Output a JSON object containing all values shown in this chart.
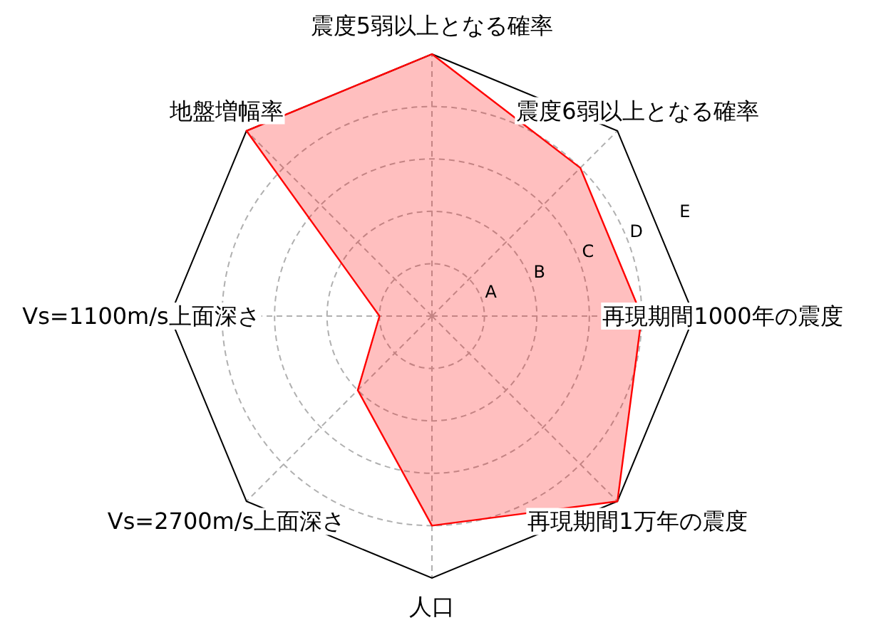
{
  "chart_data": {
    "type": "radar",
    "categories": [
      "震度5弱以上となる確率",
      "震度6弱以上となる確率",
      "再現期間1000年の震度",
      "再現期間1万年の震度",
      "人口",
      "Vs=2700m/s上面深さ",
      "Vs=1100m/s上面深さ",
      "地盤増幅率"
    ],
    "series": [
      {
        "color": "#ff0000",
        "values": [
          5,
          4,
          4,
          5,
          4,
          2,
          1,
          5
        ]
      }
    ],
    "ylim": [
      0,
      5
    ],
    "yticks": [
      {
        "value": 1,
        "label": "A"
      },
      {
        "value": 2,
        "label": "B"
      },
      {
        "value": 3,
        "label": "C"
      },
      {
        "value": 4,
        "label": "D"
      },
      {
        "value": 5,
        "label": "E"
      }
    ],
    "grid": true
  }
}
